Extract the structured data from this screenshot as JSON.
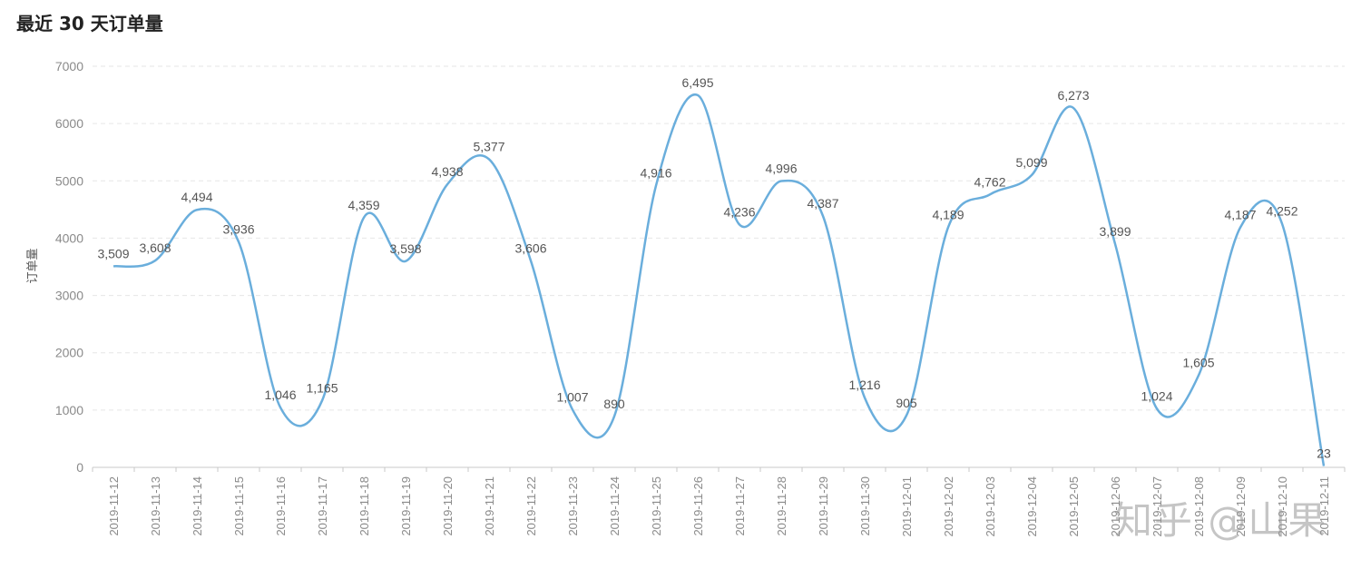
{
  "title": "最近 30 天订单量",
  "watermark": "知乎 @山果",
  "chart_data": {
    "type": "line",
    "title": "最近 30 天订单量",
    "xlabel": "",
    "ylabel": "订单量",
    "ylim": [
      0,
      7000
    ],
    "yticks": [
      "0",
      "1000",
      "2000",
      "3000",
      "4000",
      "5000",
      "6000",
      "7000"
    ],
    "grid": true,
    "smooth": true,
    "line_color": "#6aaedc",
    "x": [
      "2019-11-12",
      "2019-11-13",
      "2019-11-14",
      "2019-11-15",
      "2019-11-16",
      "2019-11-17",
      "2019-11-18",
      "2019-11-19",
      "2019-11-20",
      "2019-11-21",
      "2019-11-22",
      "2019-11-23",
      "2019-11-24",
      "2019-11-25",
      "2019-11-26",
      "2019-11-27",
      "2019-11-28",
      "2019-11-29",
      "2019-11-30",
      "2019-12-01",
      "2019-12-02",
      "2019-12-03",
      "2019-12-04",
      "2019-12-05",
      "2019-12-06",
      "2019-12-07",
      "2019-12-08",
      "2019-12-09",
      "2019-12-10",
      "2019-12-11"
    ],
    "series": [
      {
        "values": [
          3509,
          3608,
          4494,
          3936,
          1046,
          1165,
          4359,
          3598,
          4938,
          5377,
          3606,
          1007,
          890,
          4916,
          6495,
          4236,
          4996,
          4387,
          1216,
          905,
          4189,
          4762,
          5099,
          6273,
          3899,
          1024,
          1605,
          4187,
          4252,
          23
        ],
        "labels": [
          "3,509",
          "3,608",
          "4,494",
          "3,936",
          "1,046",
          "1,165",
          "4,359",
          "3,598",
          "4,938",
          "5,377",
          "3,606",
          "1,007",
          "890",
          "4,916",
          "6,495",
          "4,236",
          "4,996",
          "4,387",
          "1,216",
          "905",
          "4,189",
          "4,762",
          "5,099",
          "6,273",
          "3,899",
          "1,024",
          "1,605",
          "4,187",
          "4,252",
          "23"
        ]
      }
    ]
  }
}
